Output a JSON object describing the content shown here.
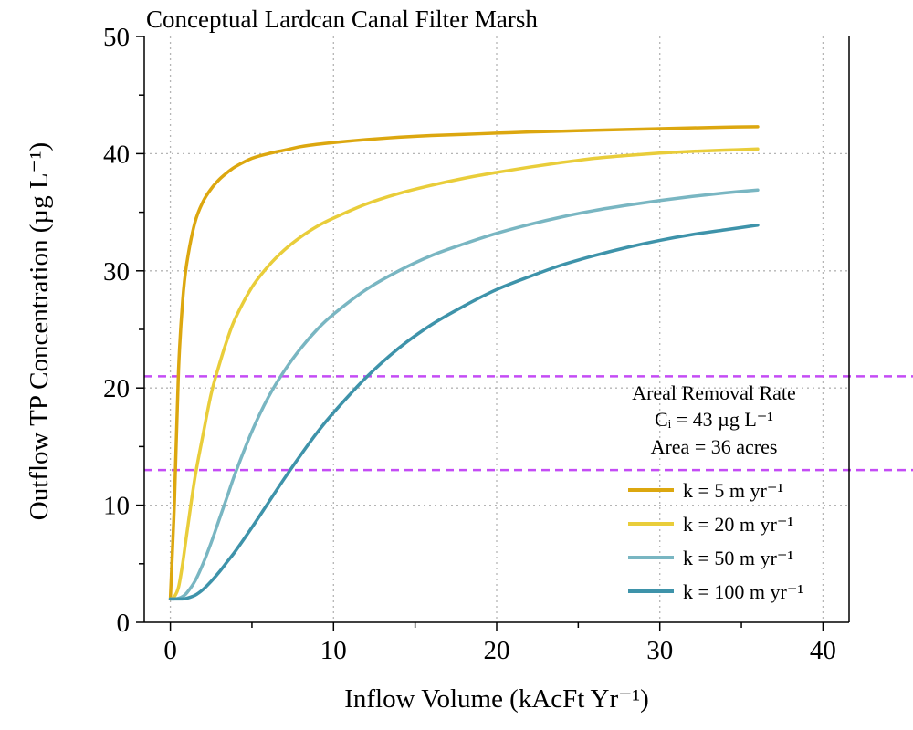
{
  "chart_data": {
    "type": "line",
    "title": "Conceptual Lardcan Canal Filter Marsh",
    "xlabel": "Inflow Volume (kAcFt Yr⁻¹)",
    "ylabel": "Outflow TP Concentration (µg L⁻¹)",
    "xlim": [
      -1.6,
      41.6
    ],
    "ylim": [
      0,
      50
    ],
    "x_ticks": [
      0,
      10,
      20,
      30,
      40
    ],
    "y_ticks": [
      0,
      10,
      20,
      30,
      40,
      50
    ],
    "x_tick_labels": [
      "0",
      "10",
      "20",
      "30",
      "40"
    ],
    "y_tick_labels": [
      "0",
      "10",
      "20",
      "30",
      "40",
      "50"
    ],
    "grid": true,
    "legend_placement": "bottom-right",
    "legend_title_lines": [
      "Areal Removal Rate",
      "Cᵢ = 43 µg L⁻¹",
      "Area = 36 acres"
    ],
    "reference_lines": [
      {
        "y": 21,
        "color": "#c44cf5"
      },
      {
        "y": 13,
        "color": "#c44cf5"
      }
    ],
    "x": [
      0,
      0.25,
      0.5,
      0.75,
      1,
      1.5,
      2,
      2.5,
      3,
      3.5,
      4,
      5,
      6,
      7,
      8,
      9,
      10,
      12,
      14,
      16,
      18,
      20,
      22,
      24,
      26,
      28,
      30,
      32,
      34,
      36
    ],
    "series": [
      {
        "name": "k = 5 m yr⁻¹",
        "color": "#dca70f",
        "values": [
          2.0,
          10.3,
          21.5,
          27.4,
          30.6,
          34.1,
          35.9,
          37.0,
          37.8,
          38.4,
          38.9,
          39.6,
          40.0,
          40.3,
          40.6,
          40.8,
          40.95,
          41.2,
          41.4,
          41.55,
          41.65,
          41.75,
          41.85,
          41.92,
          42.0,
          42.07,
          42.13,
          42.2,
          42.26,
          42.3
        ]
      },
      {
        "name": "k = 20 m yr⁻¹",
        "color": "#e9cd3a",
        "values": [
          2.0,
          2.2,
          3.0,
          5.0,
          7.5,
          12.3,
          16.0,
          19.5,
          22.0,
          24.2,
          26.0,
          28.6,
          30.4,
          31.8,
          32.9,
          33.8,
          34.5,
          35.7,
          36.6,
          37.3,
          37.9,
          38.4,
          38.85,
          39.25,
          39.6,
          39.85,
          40.05,
          40.2,
          40.3,
          40.4
        ]
      },
      {
        "name": "k = 50 m yr⁻¹",
        "color": "#79b6c2",
        "values": [
          2.0,
          2.0,
          2.05,
          2.2,
          2.5,
          3.5,
          5.0,
          6.8,
          8.8,
          10.8,
          12.8,
          16.3,
          19.2,
          21.5,
          23.4,
          25.0,
          26.3,
          28.4,
          30.0,
          31.3,
          32.3,
          33.2,
          33.95,
          34.6,
          35.15,
          35.6,
          36.0,
          36.35,
          36.65,
          36.9
        ]
      },
      {
        "name": "k = 100 m yr⁻¹",
        "color": "#3e93aa",
        "values": [
          2.0,
          2.0,
          2.0,
          2.0,
          2.05,
          2.3,
          2.8,
          3.5,
          4.3,
          5.2,
          6.1,
          8.1,
          10.2,
          12.3,
          14.3,
          16.2,
          17.9,
          20.9,
          23.4,
          25.4,
          27.0,
          28.4,
          29.5,
          30.5,
          31.3,
          32.0,
          32.6,
          33.1,
          33.5,
          33.9
        ]
      }
    ]
  }
}
